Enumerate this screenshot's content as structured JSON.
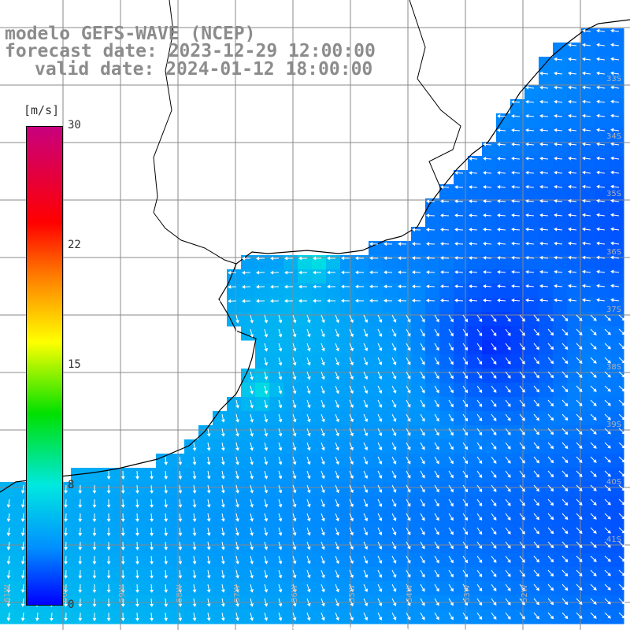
{
  "title": {
    "line1": "modelo GEFS-WAVE (NCEP)",
    "line2": "forecast date: 2023-12-29 12:00:00",
    "line3": "valid date: 2024-01-12 18:00:00"
  },
  "colorbar": {
    "unit": "[m/s]",
    "ticks": [
      "30",
      "22",
      "15",
      "8",
      "0"
    ],
    "range": [
      0,
      30
    ],
    "colors": [
      "#c8007e",
      "#ff0000",
      "#ff7a00",
      "#ffff00",
      "#00e000",
      "#00e8e0",
      "#0090ff",
      "#0000ff"
    ]
  },
  "map": {
    "variable": "wind speed and direction",
    "lat_labels": [
      "33S",
      "34S",
      "35S",
      "36S",
      "37S",
      "38S",
      "39S",
      "40S",
      "41S"
    ],
    "lon_labels": [
      "61W",
      "60W",
      "59W",
      "58W",
      "57W",
      "56W",
      "55W",
      "54W",
      "53W",
      "52W"
    ],
    "grid": true,
    "colors": {
      "land": "#ffffff",
      "coast": "#000000",
      "grid": "#888888",
      "arrow": "#ffffff",
      "label": "#b0b0b0"
    }
  }
}
